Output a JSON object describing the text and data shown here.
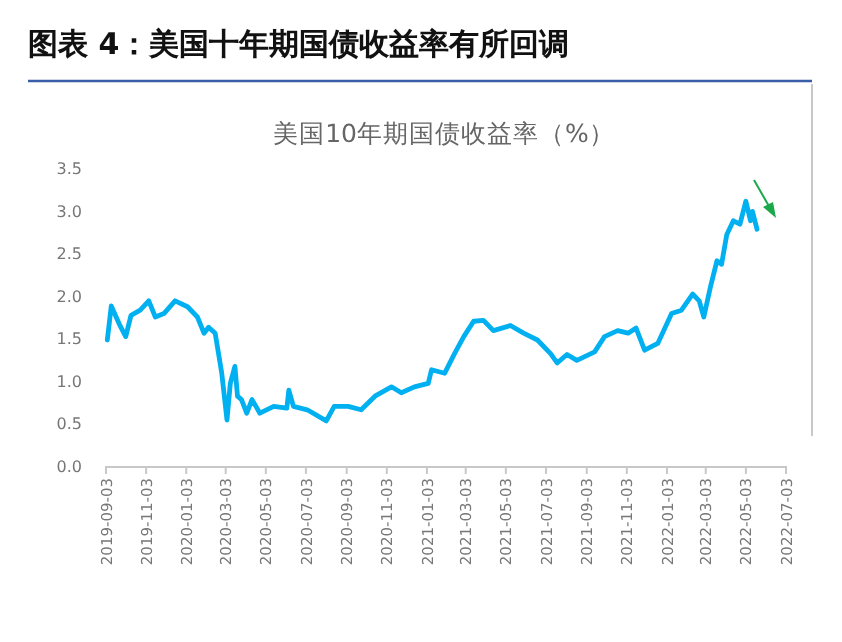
{
  "chart_data": {
    "type": "line",
    "title": "图表 4：美国十年期国债收益率有所回调",
    "subtitle": "美国10年期国债收益率（%）",
    "xlim": [
      "2019-09-03",
      "2022-07-03"
    ],
    "xticks": [
      "2019-09-03",
      "2019-11-03",
      "2020-01-03",
      "2020-03-03",
      "2020-05-03",
      "2020-07-03",
      "2020-09-03",
      "2020-11-03",
      "2021-01-03",
      "2021-03-03",
      "2021-05-03",
      "2021-07-03",
      "2021-09-03",
      "2021-11-03",
      "2022-01-03",
      "2022-03-03",
      "2022-05-03",
      "2022-07-03"
    ],
    "ylim": [
      0,
      3.5
    ],
    "yticks": [
      {
        "value": 0,
        "label": "0.0"
      },
      {
        "value": 0.5,
        "label": "0.5"
      },
      {
        "value": 1,
        "label": "1.0"
      },
      {
        "value": 1.5,
        "label": "1.5"
      },
      {
        "value": 2,
        "label": "2.0"
      },
      {
        "value": 2.5,
        "label": "2.5"
      },
      {
        "value": 3,
        "label": "3.0"
      },
      {
        "value": 3.5,
        "label": "3.5"
      }
    ],
    "grid": false,
    "marker": "none",
    "line_style": "solid",
    "x": [
      "2019-09-05",
      "2019-09-11",
      "2019-09-23",
      "2019-10-03",
      "2019-10-11",
      "2019-10-25",
      "2019-11-07",
      "2019-11-17",
      "2019-11-30",
      "2019-12-17",
      "2020-01-05",
      "2020-01-20",
      "2020-01-30",
      "2020-02-06",
      "2020-02-16",
      "2020-02-26",
      "2020-03-05",
      "2020-03-10",
      "2020-03-17",
      "2020-03-21",
      "2020-03-27",
      "2020-04-04",
      "2020-04-12",
      "2020-04-24",
      "2020-05-15",
      "2020-06-04",
      "2020-06-07",
      "2020-06-14",
      "2020-07-05",
      "2020-08-03",
      "2020-08-15",
      "2020-09-05",
      "2020-09-25",
      "2020-10-16",
      "2020-11-10",
      "2020-11-25",
      "2020-12-15",
      "2021-01-05",
      "2021-01-10",
      "2021-01-30",
      "2021-02-14",
      "2021-02-28",
      "2021-03-15",
      "2021-03-30",
      "2021-04-14",
      "2021-05-10",
      "2021-05-30",
      "2021-06-20",
      "2021-07-10",
      "2021-07-20",
      "2021-08-04",
      "2021-08-19",
      "2021-09-15",
      "2021-09-30",
      "2021-10-20",
      "2021-11-05",
      "2021-11-17",
      "2021-11-30",
      "2021-12-20",
      "2022-01-10",
      "2022-01-25",
      "2022-02-11",
      "2022-02-21",
      "2022-02-28",
      "2022-03-10",
      "2022-03-20",
      "2022-03-27",
      "2022-04-04",
      "2022-04-14",
      "2022-04-24",
      "2022-05-03",
      "2022-05-10",
      "2022-05-13",
      "2022-05-20"
    ],
    "series": [
      {
        "color": "#00b0f0",
        "values": [
          1.48,
          1.88,
          1.67,
          1.52,
          1.77,
          1.83,
          1.94,
          1.75,
          1.79,
          1.94,
          1.87,
          1.75,
          1.56,
          1.63,
          1.56,
          1.09,
          0.54,
          0.97,
          1.17,
          0.82,
          0.78,
          0.62,
          0.78,
          0.62,
          0.7,
          0.68,
          0.89,
          0.7,
          0.66,
          0.53,
          0.7,
          0.7,
          0.66,
          0.82,
          0.93,
          0.86,
          0.93,
          0.97,
          1.13,
          1.09,
          1.32,
          1.52,
          1.7,
          1.71,
          1.59,
          1.65,
          1.56,
          1.48,
          1.32,
          1.21,
          1.31,
          1.24,
          1.34,
          1.52,
          1.59,
          1.56,
          1.62,
          1.36,
          1.44,
          1.79,
          1.83,
          2.02,
          1.94,
          1.75,
          2.1,
          2.41,
          2.37,
          2.72,
          2.88,
          2.84,
          3.11,
          2.88,
          2.99,
          2.78
        ]
      }
    ]
  }
}
